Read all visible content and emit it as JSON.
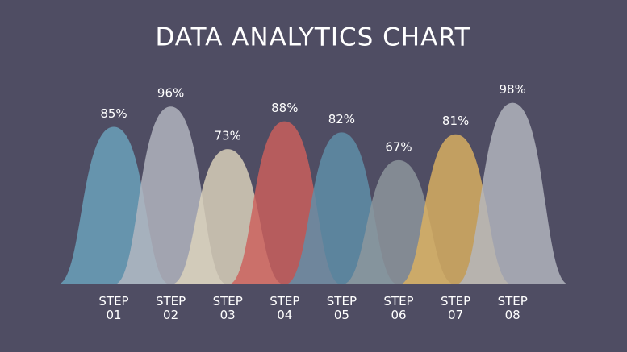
{
  "chart_data": {
    "type": "bell",
    "title": "DATA ANALYTICS CHART",
    "categories": [
      "STEP 01",
      "STEP 02",
      "STEP 03",
      "STEP 04",
      "STEP 05",
      "STEP 06",
      "STEP 07",
      "STEP 08"
    ],
    "values": [
      85,
      96,
      73,
      88,
      82,
      67,
      81,
      98
    ],
    "value_labels": [
      "85%",
      "96%",
      "73%",
      "88%",
      "82%",
      "67%",
      "81%",
      "98%"
    ],
    "colors": [
      "#6ba4bd",
      "#b4b7c1",
      "#ddd3bc",
      "#cd5f5b",
      "#5f90aa",
      "#8f979d",
      "#dcb160",
      "#b4b7c0"
    ]
  }
}
